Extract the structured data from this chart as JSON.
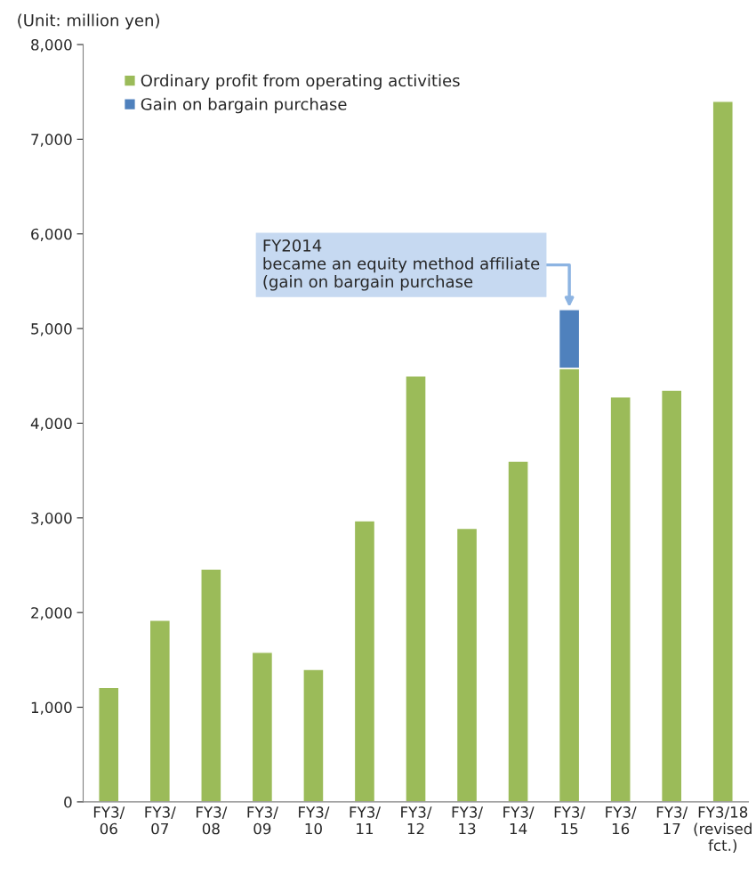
{
  "chart_data": {
    "type": "bar",
    "stacked": true,
    "ylabel": "(Unit: million yen)",
    "categories": [
      "FY3/\n06",
      "FY3/\n07",
      "FY3/\n08",
      "FY3/\n09",
      "FY3/\n10",
      "FY3/\n11",
      "FY3/\n12",
      "FY3/\n13",
      "FY3/\n14",
      "FY3/\n15",
      "FY3/\n16",
      "FY3/\n17",
      "FY3/18\n(revised\nfct.)"
    ],
    "series": [
      {
        "name": "Ordinary profit from operating activities",
        "color": "#9bbb59",
        "values": [
          1210,
          1920,
          2460,
          1580,
          1400,
          2970,
          4500,
          2890,
          3600,
          4580,
          4280,
          4350,
          7400
        ]
      },
      {
        "name": "Gain on bargain purchase",
        "color": "#4f81bd",
        "values": [
          null,
          null,
          null,
          null,
          null,
          null,
          null,
          null,
          null,
          620,
          null,
          null,
          null
        ]
      }
    ],
    "ylim": [
      0,
      8000
    ],
    "yticks": [
      {
        "value": 0,
        "label": "0"
      },
      {
        "value": 1000,
        "label": "1,000"
      },
      {
        "value": 2000,
        "label": "2,000"
      },
      {
        "value": 3000,
        "label": "3,000"
      },
      {
        "value": 4000,
        "label": "4,000"
      },
      {
        "value": 5000,
        "label": "5,000"
      },
      {
        "value": 6000,
        "label": "6,000"
      },
      {
        "value": 7000,
        "label": "7,000"
      },
      {
        "value": 8000,
        "label": "8,000"
      }
    ],
    "annotations": [
      {
        "text": "FY2014\nbecame an equity method affiliate\n(gain on bargain purchase",
        "x": "FY3/\n15",
        "y": 5200
      }
    ],
    "legend": "top left",
    "grid": false
  }
}
